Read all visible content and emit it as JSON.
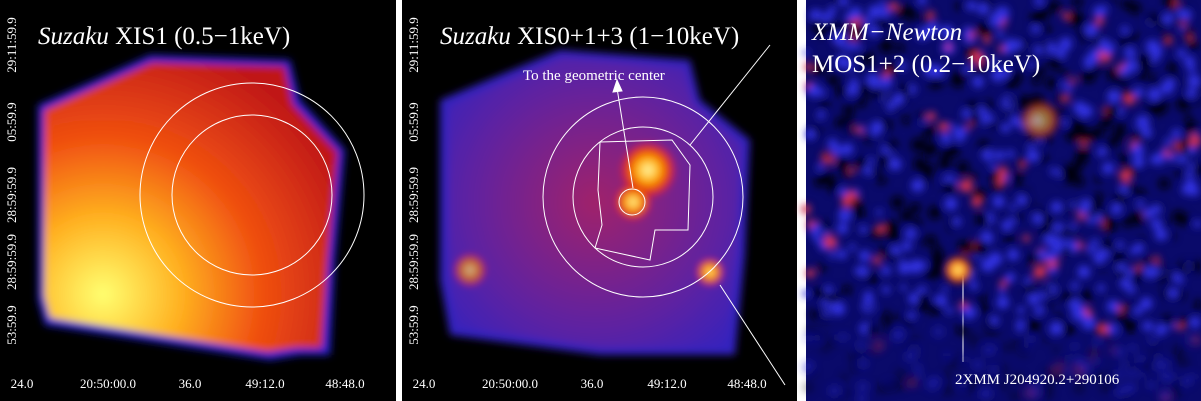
{
  "panels": [
    {
      "title_italic": "Suzaku",
      "title_rest": "XIS1 (0.5−1keV)",
      "y_labels": [
        "29:11:59.9",
        "05:59.9",
        "28:59:59.9",
        "28:59:59.9",
        "53:59.9"
      ],
      "x_labels": [
        "24.0",
        "20:50:00.0",
        "36.0",
        "49:12.0",
        "48:48.0"
      ]
    },
    {
      "title_italic": "Suzaku",
      "title_rest": "XIS0+1+3 (1−10keV)",
      "annotation": "To the geometric center",
      "y_labels": [
        "29:11:59.9",
        "05:59.9",
        "28:59:59.9",
        "28:59:59.9",
        "53:59.9"
      ],
      "x_labels": [
        "24.0",
        "20:50:00.0",
        "36.0",
        "49:12.0",
        "48:48.0"
      ]
    },
    {
      "title_italic": "XMM−Newton",
      "title_rest": "MOS1+2 (0.2−10keV)",
      "annotation": "2XMM J204920.2+290106"
    }
  ]
}
